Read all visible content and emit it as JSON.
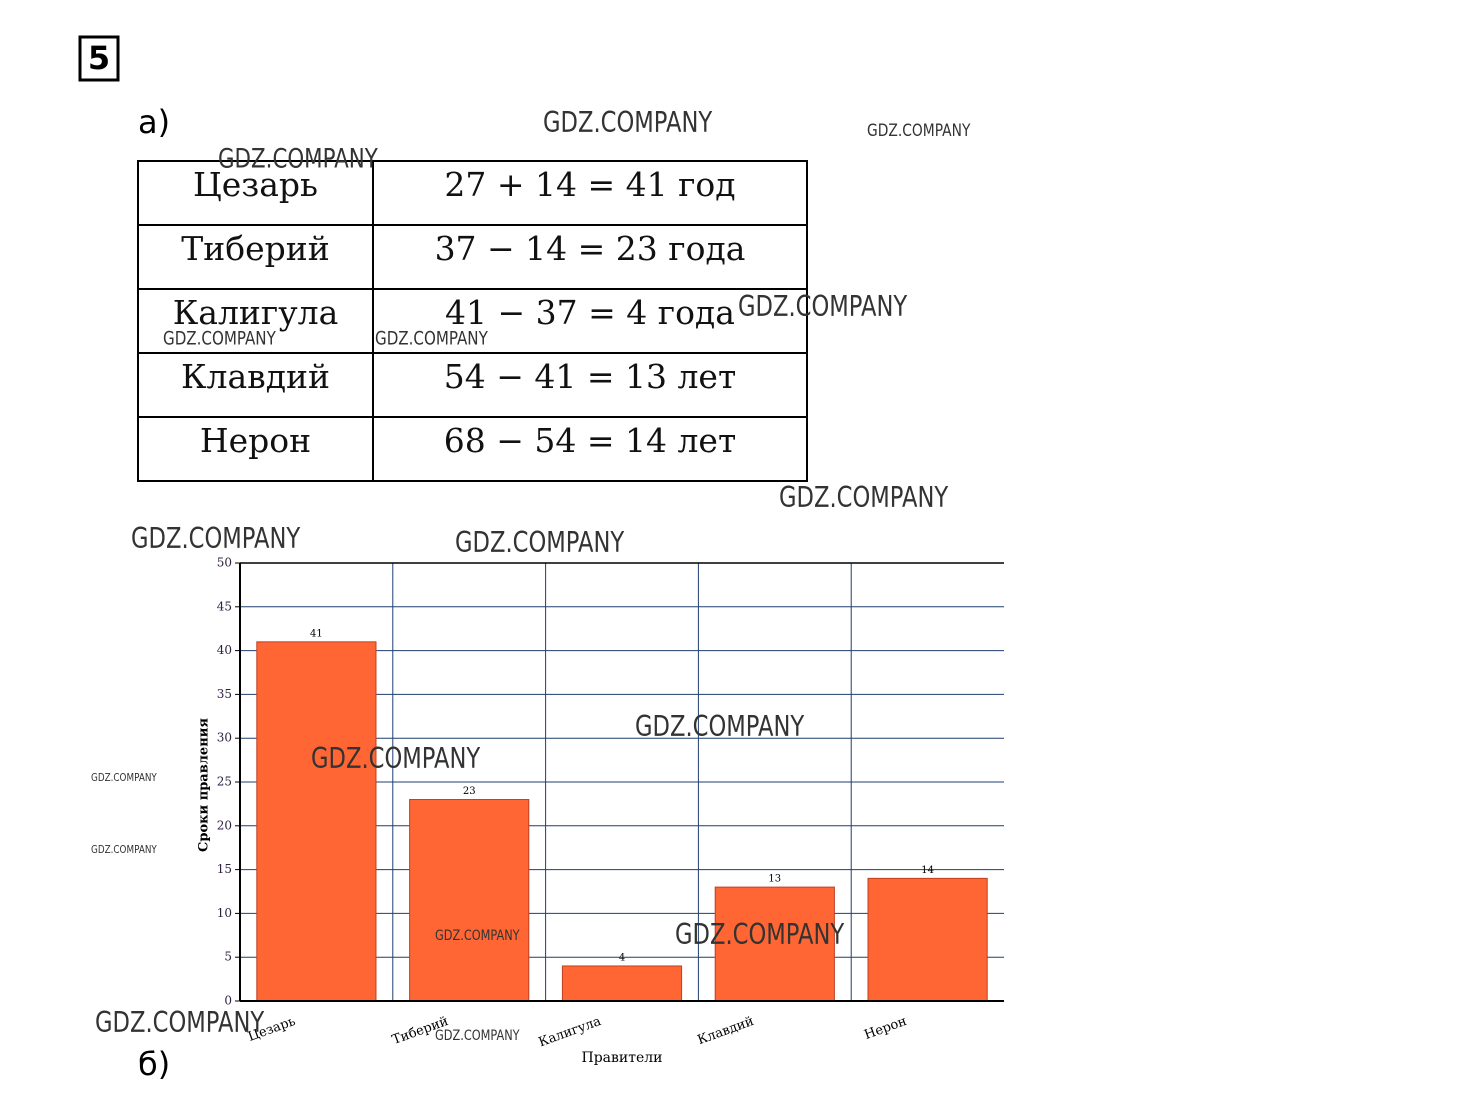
{
  "problem_number": "5",
  "part_a_label": "а)",
  "part_b_label": "б)",
  "table": {
    "rows": [
      [
        "Цезарь",
        "27 + 14 = 41 год"
      ],
      [
        "Тиберий",
        "37 − 14 = 23 года"
      ],
      [
        "Калигула",
        "41 − 37 = 4 года"
      ],
      [
        "Клавдий",
        "54 − 41 = 13 лет"
      ],
      [
        "Нерон",
        "68 − 54 = 14 лет"
      ]
    ]
  },
  "chart_data": {
    "type": "bar",
    "categories": [
      "Цезарь",
      "Тиберий",
      "Калигула",
      "Клавдий",
      "Нерон"
    ],
    "values": [
      41,
      23,
      4,
      13,
      14
    ],
    "color": "#ff6633",
    "y_label": "Сроки правления",
    "x_label": "Правители",
    "ylim": [
      0,
      50
    ],
    "yticks": [
      0,
      5,
      10,
      15,
      20,
      25,
      30,
      35,
      40,
      45,
      50
    ],
    "grid": true
  },
  "watermarks": [
    "GDZ.COMPANY",
    "GDZ.COMPANY",
    "GDZ.COMPANY",
    "GDZ.COMPANY",
    "GDZ.COMPANY",
    "GDZ.COMPANY",
    "GDZ.COMPANY",
    "GDZ.COMPANY",
    "GDZ.COMPANY",
    "GDZ.COMPANY",
    "GDZ.COMPANY",
    "GDZ.COMPANY",
    "GDZ.COMPANY",
    "GDZ.COMPANY",
    "GDZ.COMPANY",
    "GDZ.COMPANY",
    "GDZ.COMPANY"
  ]
}
